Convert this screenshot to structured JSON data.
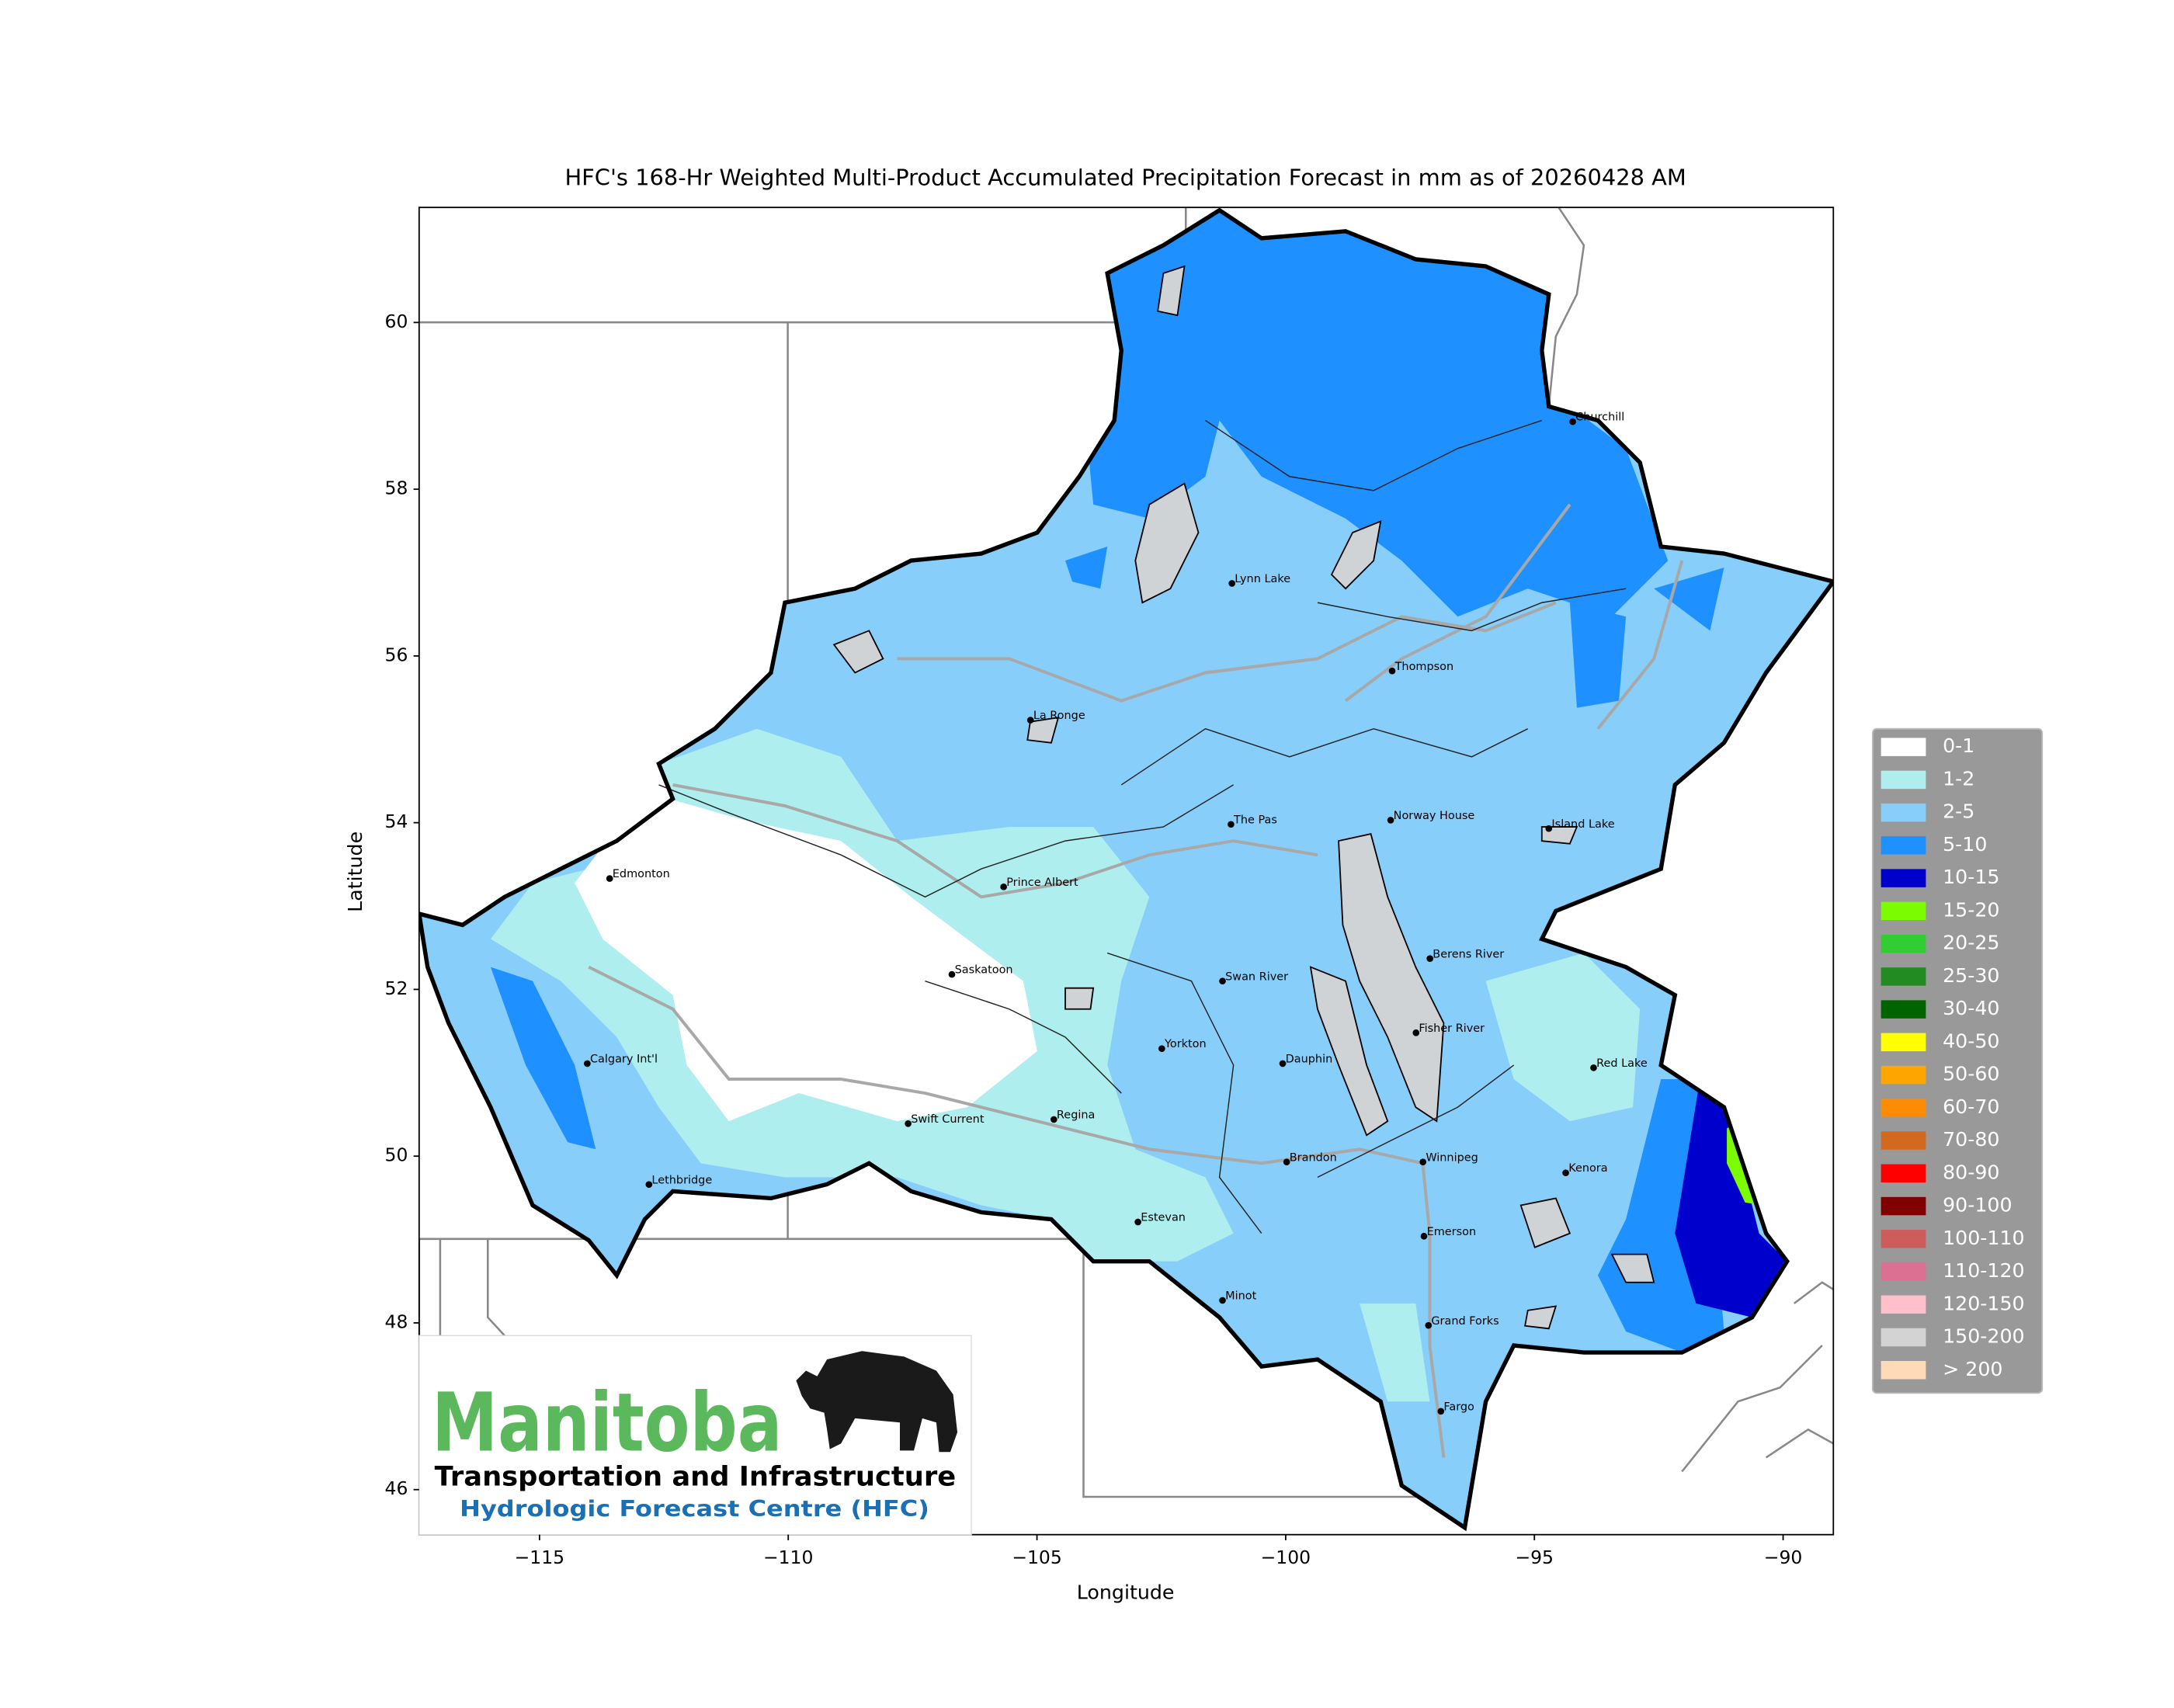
{
  "map": {
    "title": "HFC's 168-Hr Weighted Multi-Product Accumulated Precipitation Forecast in mm as of 20260428 AM",
    "xlabel": "Longitude",
    "ylabel": "Latitude",
    "xlim": [
      -117.42,
      -88.99
    ],
    "ylim": [
      45.46,
      61.38
    ],
    "xticks": [
      {
        "value": -115,
        "label": "−115"
      },
      {
        "value": -110,
        "label": "−110"
      },
      {
        "value": -105,
        "label": "−105"
      },
      {
        "value": -100,
        "label": "−100"
      },
      {
        "value": -95,
        "label": "−95"
      },
      {
        "value": -90,
        "label": "−90"
      }
    ],
    "yticks": [
      46,
      48,
      50,
      52,
      54,
      56,
      58,
      60
    ],
    "cities": [
      {
        "name": "Churchill",
        "lon": -94.23,
        "lat": 58.81
      },
      {
        "name": "Lynn Lake",
        "lon": -101.08,
        "lat": 56.87
      },
      {
        "name": "Thompson",
        "lon": -97.86,
        "lat": 55.82
      },
      {
        "name": "La Ronge",
        "lon": -105.13,
        "lat": 55.23
      },
      {
        "name": "The Pas",
        "lon": -101.1,
        "lat": 53.98
      },
      {
        "name": "Norway House",
        "lon": -97.89,
        "lat": 54.03
      },
      {
        "name": "Island Lake",
        "lon": -94.71,
        "lat": 53.93
      },
      {
        "name": "Edmonton",
        "lon": -113.59,
        "lat": 53.33
      },
      {
        "name": "Prince Albert",
        "lon": -105.67,
        "lat": 53.23
      },
      {
        "name": "Berens River",
        "lon": -97.1,
        "lat": 52.37
      },
      {
        "name": "Saskatoon",
        "lon": -106.71,
        "lat": 52.18
      },
      {
        "name": "Swan River",
        "lon": -101.27,
        "lat": 52.1
      },
      {
        "name": "Fisher River",
        "lon": -97.38,
        "lat": 51.48
      },
      {
        "name": "Yorkton",
        "lon": -102.49,
        "lat": 51.29
      },
      {
        "name": "Dauphin",
        "lon": -100.06,
        "lat": 51.11
      },
      {
        "name": "Calgary Int'l",
        "lon": -114.04,
        "lat": 51.11
      },
      {
        "name": "Red Lake",
        "lon": -93.81,
        "lat": 51.06
      },
      {
        "name": "Regina",
        "lon": -104.66,
        "lat": 50.44
      },
      {
        "name": "Swift Current",
        "lon": -107.59,
        "lat": 50.39
      },
      {
        "name": "Brandon",
        "lon": -99.98,
        "lat": 49.93
      },
      {
        "name": "Winnipeg",
        "lon": -97.24,
        "lat": 49.93
      },
      {
        "name": "Kenora",
        "lon": -94.37,
        "lat": 49.8
      },
      {
        "name": "Lethbridge",
        "lon": -112.8,
        "lat": 49.66
      },
      {
        "name": "Estevan",
        "lon": -102.97,
        "lat": 49.21
      },
      {
        "name": "Emerson",
        "lon": -97.22,
        "lat": 49.04
      },
      {
        "name": "Minot",
        "lon": -101.27,
        "lat": 48.27
      },
      {
        "name": "Grand Forks",
        "lon": -97.13,
        "lat": 47.97
      },
      {
        "name": "Fargo",
        "lon": -96.88,
        "lat": 46.94
      }
    ],
    "legend": [
      {
        "label": "0-1",
        "color": "#ffffff"
      },
      {
        "label": "1-2",
        "color": "#afeeee"
      },
      {
        "label": "2-5",
        "color": "#87cefa"
      },
      {
        "label": "5-10",
        "color": "#1e90ff"
      },
      {
        "label": "10-15",
        "color": "#0000cd"
      },
      {
        "label": "15-20",
        "color": "#7cfc00"
      },
      {
        "label": "20-25",
        "color": "#32cd32"
      },
      {
        "label": "25-30",
        "color": "#228b22"
      },
      {
        "label": "30-40",
        "color": "#006400"
      },
      {
        "label": "40-50",
        "color": "#ffff00"
      },
      {
        "label": "50-60",
        "color": "#ffa500"
      },
      {
        "label": "60-70",
        "color": "#ff8c00"
      },
      {
        "label": "70-80",
        "color": "#d2691e"
      },
      {
        "label": "80-90",
        "color": "#ff0000"
      },
      {
        "label": "90-100",
        "color": "#800000"
      },
      {
        "label": "100-110",
        "color": "#cd5c5c"
      },
      {
        "label": "110-120",
        "color": "#db7093"
      },
      {
        "label": "120-150",
        "color": "#ffc0cb"
      },
      {
        "label": "150-200",
        "color": "#d3d3d3"
      },
      {
        "label": "> 200",
        "color": "#ffdab9"
      }
    ]
  },
  "logo": {
    "name": "Manitoba",
    "department": "Transportation and Infrastructure",
    "unit": "Hydrologic Forecast Centre (HFC)"
  }
}
